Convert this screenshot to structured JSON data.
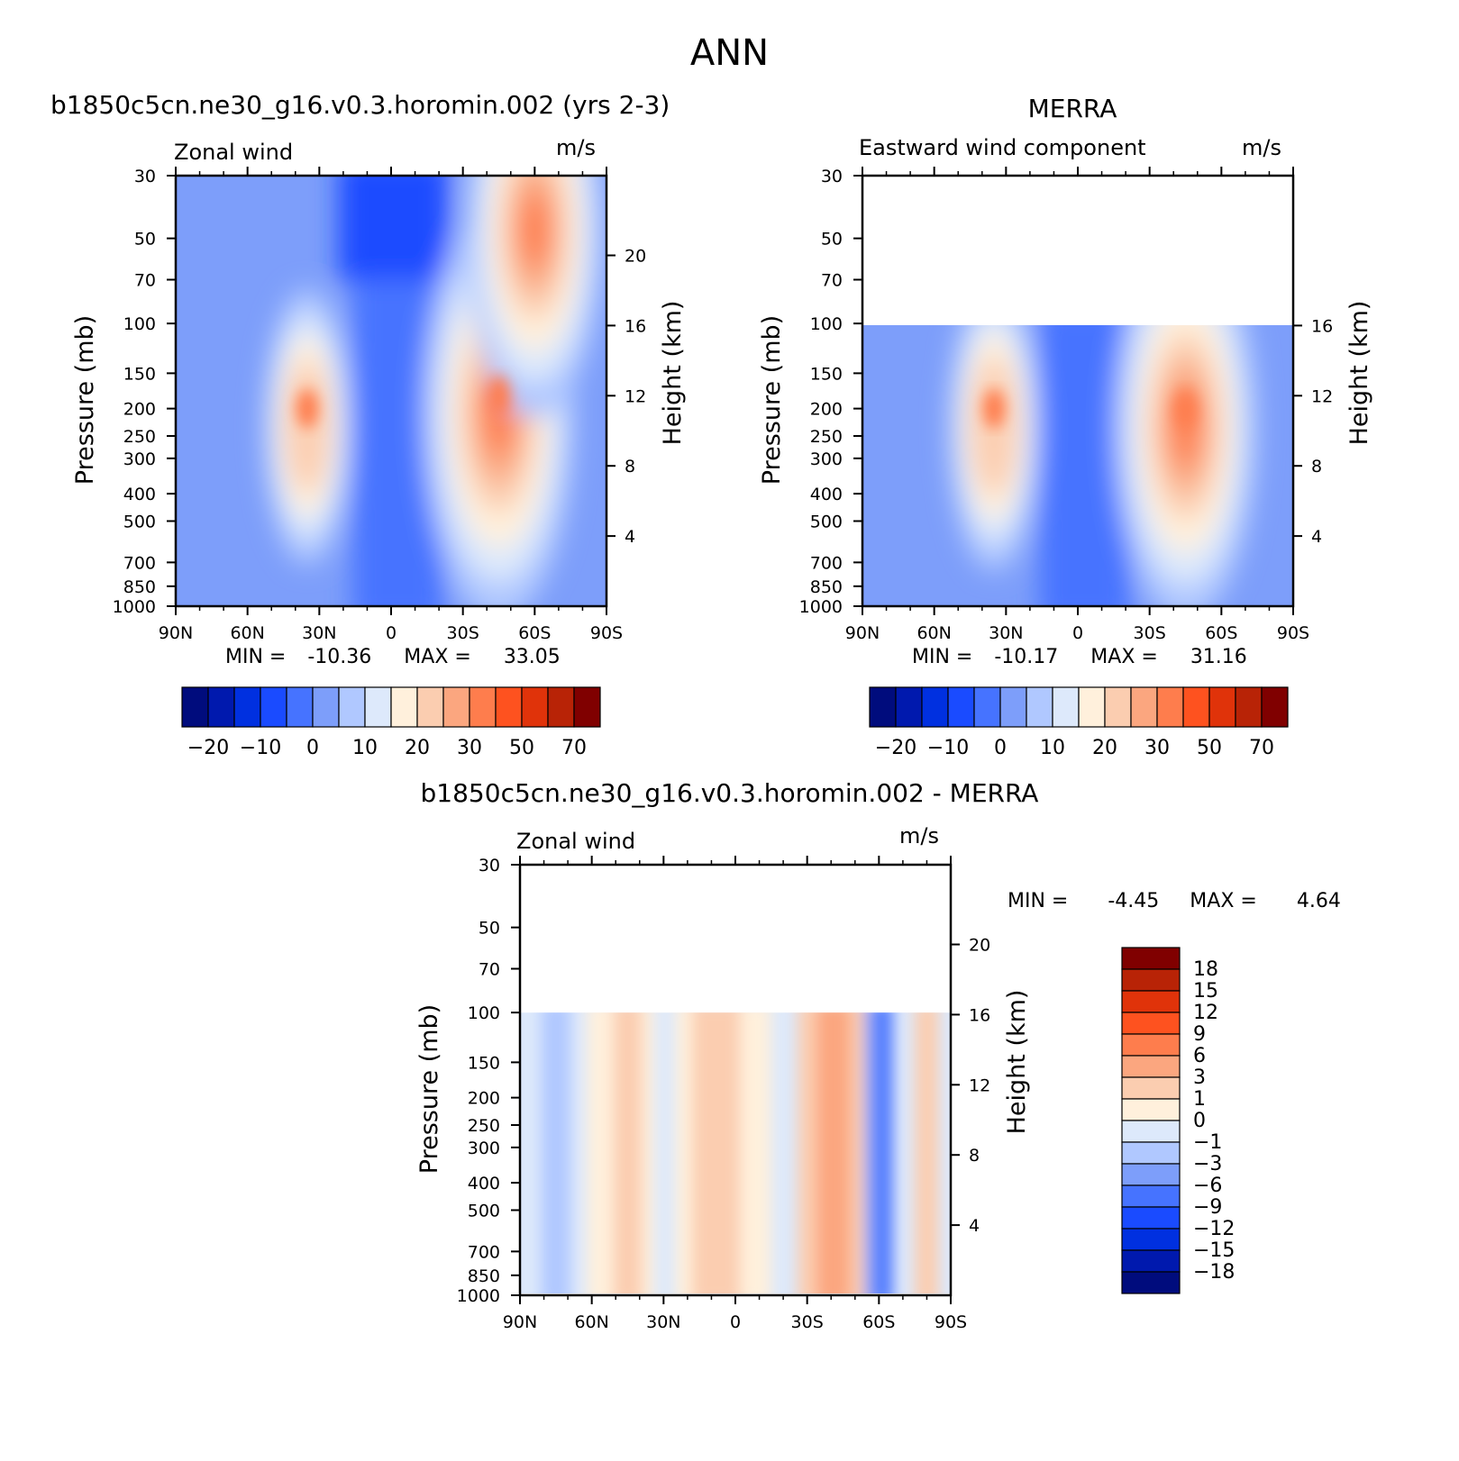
{
  "page": {
    "title": "ANN"
  },
  "palette": {
    "abs": [
      "#000c7d",
      "#0019ae",
      "#0030e0",
      "#1a4bff",
      "#4673ff",
      "#7d9efa",
      "#b0c8ff",
      "#dde9fb",
      "#fff0dc",
      "#fbcdb0",
      "#fba67f",
      "#fe7d4d",
      "#fe521f",
      "#e0330a",
      "#b82306",
      "#800000"
    ],
    "diff_blues": [
      "#000c7d",
      "#0019ae",
      "#0030e0",
      "#1a4bff",
      "#4673ff",
      "#7d9efa",
      "#b0c8ff",
      "#dde9fb"
    ],
    "diff_reds": [
      "#fff0dc",
      "#fbcdb0",
      "#fba67f",
      "#fe7d4d",
      "#fe521f",
      "#e0330a",
      "#b82306",
      "#800000"
    ]
  },
  "chart_data": [
    {
      "id": "model",
      "type": "contour",
      "title": "b1850c5cn.ne30_g16.v0.3.horomin.002 (yrs 2-3)",
      "left_label": "Zonal wind",
      "units": "m/s",
      "ylabel": "Pressure (mb)",
      "y2label": "Height (km)",
      "x_ticks": [
        "90N",
        "60N",
        "30N",
        "0",
        "30S",
        "60S",
        "90S"
      ],
      "y_ticks": [
        30,
        50,
        70,
        100,
        150,
        200,
        250,
        300,
        400,
        500,
        700,
        850,
        1000
      ],
      "ylim": [
        30,
        1000
      ],
      "height_ticks": [
        4,
        8,
        12,
        16,
        20
      ],
      "min": "-10.36",
      "max": "33.05",
      "min_label": "MIN =",
      "max_label": "MAX =",
      "data_top_mb": 30,
      "jets": [
        {
          "lat": 35,
          "p": 200,
          "speed": 22
        },
        {
          "lat": -45,
          "p": 180,
          "speed": 33
        },
        {
          "lat": -60,
          "p": 30,
          "speed": 30
        }
      ],
      "colorbar": {
        "labels": [
          "-20",
          "-10",
          "0",
          "10",
          "20",
          "30",
          "50",
          "70"
        ]
      }
    },
    {
      "id": "obs",
      "type": "contour",
      "title": "MERRA",
      "left_label": "Eastward wind component",
      "units": "m/s",
      "ylabel": "Pressure (mb)",
      "y2label": "Height (km)",
      "x_ticks": [
        "90N",
        "60N",
        "30N",
        "0",
        "30S",
        "60S",
        "90S"
      ],
      "y_ticks": [
        30,
        50,
        70,
        100,
        150,
        200,
        250,
        300,
        400,
        500,
        700,
        850,
        1000
      ],
      "ylim": [
        30,
        1000
      ],
      "height_ticks": [
        4,
        8,
        12,
        16
      ],
      "min": "-10.17",
      "max": "31.16",
      "min_label": "MIN =",
      "max_label": "MAX =",
      "data_top_mb": 100,
      "jets": [
        {
          "lat": 35,
          "p": 200,
          "speed": 23
        },
        {
          "lat": -45,
          "p": 200,
          "speed": 31
        }
      ],
      "colorbar": {
        "labels": [
          "-20",
          "-10",
          "0",
          "10",
          "20",
          "30",
          "50",
          "70"
        ]
      }
    },
    {
      "id": "diff",
      "type": "contour",
      "title": "b1850c5cn.ne30_g16.v0.3.horomin.002 - MERRA",
      "left_label": "Zonal wind",
      "units": "m/s",
      "ylabel": "Pressure (mb)",
      "y2label": "Height (km)",
      "x_ticks": [
        "90N",
        "60N",
        "30N",
        "0",
        "30S",
        "60S",
        "90S"
      ],
      "y_ticks": [
        30,
        50,
        70,
        100,
        150,
        200,
        250,
        300,
        400,
        500,
        700,
        850,
        1000
      ],
      "ylim": [
        30,
        1000
      ],
      "height_ticks": [
        4,
        8,
        12,
        16,
        20
      ],
      "min": "-4.45",
      "max": "4.64",
      "min_label": "MIN =",
      "max_label": "MAX =",
      "data_top_mb": 100,
      "colorbar": {
        "labels": [
          "18",
          "15",
          "12",
          "9",
          "6",
          "3",
          "1",
          "0",
          "-1",
          "-3",
          "-6",
          "-9",
          "-12",
          "-15",
          "-18"
        ]
      }
    }
  ]
}
